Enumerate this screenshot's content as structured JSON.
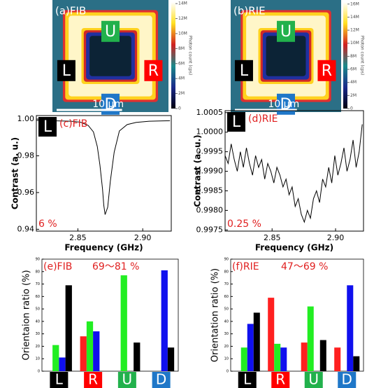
{
  "chart_data": [
    {
      "type": "image",
      "title": "(a)FIB",
      "markers": [
        "U",
        "L",
        "R",
        "D"
      ],
      "scalebar": "10 µm",
      "colorbar_label": "Photon count (cps)",
      "clim": [
        0,
        14200000
      ],
      "cticks": [
        {
          "value": 14000000,
          "label": "14M"
        },
        {
          "value": 12000000,
          "label": "12M"
        },
        {
          "value": 10000000,
          "label": "10M"
        },
        {
          "value": 8000000,
          "label": "8M"
        },
        {
          "value": 6000000,
          "label": "6M"
        },
        {
          "value": 4000000,
          "label": "4M"
        },
        {
          "value": 2000000,
          "label": "2M"
        },
        0
      ]
    },
    {
      "type": "image",
      "title": "(b)RIE",
      "markers": [
        "U",
        "L",
        "R",
        "D"
      ],
      "scalebar": "10 µm",
      "colorbar_label": "Photon count (cps)",
      "clim": [
        0,
        16300000
      ],
      "cticks": [
        {
          "value": 16000000,
          "label": "16M"
        },
        {
          "value": 14000000,
          "label": "14M"
        },
        {
          "value": 12000000,
          "label": "12M"
        },
        {
          "value": 10000000,
          "label": "10M"
        },
        {
          "value": 8000000,
          "label": "8M"
        },
        {
          "value": 6000000,
          "label": "6M"
        },
        {
          "value": 4000000,
          "label": "4M"
        },
        {
          "value": 2000000,
          "label": "2M"
        },
        0
      ]
    },
    {
      "type": "line",
      "title": "(c)FIB",
      "marker": "L",
      "annotation": "6 %",
      "xlabel": "Frequency (GHz)",
      "ylabel": "Contrast (a. u.)",
      "x": [
        2.818,
        2.825,
        2.835,
        2.845,
        2.852,
        2.858,
        2.862,
        2.865,
        2.867,
        2.869,
        2.87,
        2.871,
        2.873,
        2.875,
        2.878,
        2.882,
        2.888,
        2.895,
        2.905,
        2.915,
        2.921
      ],
      "series": [
        {
          "color": "#000000",
          "values": [
            0.9993,
            0.9992,
            0.999,
            0.9988,
            0.9983,
            0.9965,
            0.993,
            0.985,
            0.975,
            0.962,
            0.953,
            0.948,
            0.952,
            0.966,
            0.982,
            0.9935,
            0.997,
            0.9982,
            0.9988,
            0.999,
            0.9991
          ]
        }
      ],
      "xlim": [
        2.818,
        2.922
      ],
      "ylim": [
        0.939,
        1.0019
      ],
      "xticks": [
        2.85,
        {
          "value": 2.9,
          "label": "2.90"
        }
      ],
      "yticks": [
        {
          "value": 1,
          "label": "1.00"
        },
        0.98,
        0.96,
        0.94
      ]
    },
    {
      "type": "line",
      "title": "(d)RIE",
      "marker": "L",
      "annotation": "0.25 %",
      "xlabel": "Frequency (GHz)",
      "ylabel": "Contrast (a. u.)",
      "x": [
        2.813,
        2.8154,
        2.8178,
        2.8202,
        2.8226,
        2.825,
        2.8274,
        2.8298,
        2.8322,
        2.8346,
        2.837,
        2.8394,
        2.8418,
        2.8442,
        2.8466,
        2.849,
        2.8514,
        2.8538,
        2.8562,
        2.8586,
        2.861,
        2.8634,
        2.8658,
        2.8682,
        2.8706,
        2.873,
        2.8754,
        2.8778,
        2.8802,
        2.8826,
        2.885,
        2.8874,
        2.8898,
        2.8922,
        2.8946,
        2.897,
        2.8994,
        2.9018,
        2.9042,
        2.9066,
        2.909,
        2.9114,
        2.9138,
        2.9162,
        2.9186,
        2.921
      ],
      "series": [
        {
          "color": "#000000",
          "values": [
            0.9994,
            0.9992,
            0.9997,
            0.9993,
            0.999,
            0.9995,
            0.9991,
            0.9996,
            0.9992,
            0.9989,
            0.9994,
            0.9991,
            0.9993,
            0.9988,
            0.9992,
            0.999,
            0.9987,
            0.9991,
            0.9989,
            0.9986,
            0.9988,
            0.9984,
            0.9986,
            0.9981,
            0.9983,
            0.9979,
            0.9977,
            0.998,
            0.9978,
            0.9983,
            0.9985,
            0.9982,
            0.9988,
            0.9986,
            0.9991,
            0.9987,
            0.9994,
            0.9989,
            0.9992,
            0.9996,
            0.999,
            0.9993,
            0.9998,
            0.9991,
            0.9995,
            1.0002
          ]
        }
      ],
      "xlim": [
        2.813,
        2.922
      ],
      "ylim": [
        0.99747,
        1.00055
      ],
      "xticks": [
        2.85,
        {
          "value": 2.9,
          "label": "2.90"
        }
      ],
      "yticks": [
        1.0005,
        {
          "value": 1,
          "label": "1.0000"
        },
        0.9995,
        {
          "value": 0.999,
          "label": "0.9990"
        },
        0.9985,
        {
          "value": 0.998,
          "label": "0.9980"
        },
        0.9975
      ]
    },
    {
      "type": "bar",
      "title": "(e)FIB",
      "annotation": "69～81 %",
      "ylabel": "Orientaion ratio (%)",
      "categories": [
        "L",
        "R",
        "U",
        "D"
      ],
      "category_colors": [
        "#000000",
        "#ff0000",
        "#22b14c",
        "#1f77c8"
      ],
      "series": [
        {
          "color": "#ff2020",
          "values": [
            0,
            28,
            0,
            0
          ]
        },
        {
          "color": "#22ee22",
          "values": [
            21,
            40,
            77,
            0
          ]
        },
        {
          "color": "#1010ee",
          "values": [
            11,
            32,
            0,
            81
          ]
        },
        {
          "color": "#000000",
          "values": [
            69,
            0,
            23,
            19
          ]
        }
      ],
      "ylim": [
        0,
        90
      ],
      "yticks": [
        0,
        10,
        20,
        30,
        40,
        50,
        60,
        70,
        80,
        90
      ]
    },
    {
      "type": "bar",
      "title": "(f)RIE",
      "annotation": "47～69 %",
      "ylabel": "Orientation ratio (%)",
      "categories": [
        "L",
        "R",
        "U",
        "D"
      ],
      "category_colors": [
        "#000000",
        "#ff0000",
        "#22b14c",
        "#1f77c8"
      ],
      "series": [
        {
          "color": "#ff2020",
          "values": [
            0,
            59,
            23,
            19
          ]
        },
        {
          "color": "#22ee22",
          "values": [
            19,
            22,
            52,
            0
          ]
        },
        {
          "color": "#1010ee",
          "values": [
            38,
            19,
            0,
            69
          ]
        },
        {
          "color": "#000000",
          "values": [
            47,
            0,
            25,
            12
          ]
        }
      ],
      "ylim": [
        0,
        90
      ],
      "yticks": [
        0,
        10,
        20,
        30,
        40,
        50,
        60,
        70,
        80,
        90
      ]
    }
  ]
}
